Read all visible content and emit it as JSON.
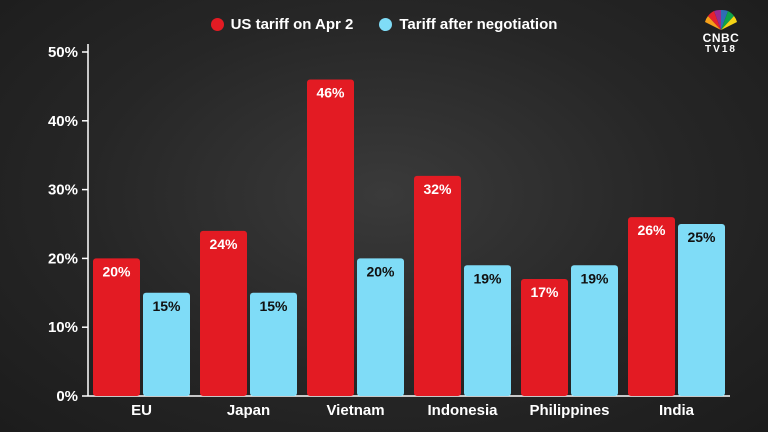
{
  "chart_data": {
    "type": "bar",
    "title": "",
    "xlabel": "",
    "ylabel": "",
    "categories": [
      "EU",
      "Japan",
      "Vietnam",
      "Indonesia",
      "Philippines",
      "India"
    ],
    "series": [
      {
        "name": "US tariff on Apr 2",
        "values": [
          20,
          24,
          46,
          32,
          17,
          26
        ],
        "color": "#e31b23"
      },
      {
        "name": "Tariff after negotiation",
        "values": [
          15,
          15,
          20,
          19,
          19,
          25
        ],
        "color": "#7fdcf7"
      }
    ],
    "ylim": [
      0,
      50
    ],
    "yticks": [
      0,
      10,
      20,
      30,
      40,
      50
    ],
    "ytick_labels": [
      "0%",
      "10%",
      "20%",
      "30%",
      "40%",
      "50%"
    ],
    "data_labels": [
      [
        "20%",
        "24%",
        "46%",
        "32%",
        "17%",
        "26%"
      ],
      [
        "15%",
        "15%",
        "20%",
        "19%",
        "19%",
        "25%"
      ]
    ],
    "legend_position": "top-center",
    "grid": false
  },
  "legend": {
    "items": [
      {
        "label": "US tariff on Apr 2",
        "color": "#e31b23"
      },
      {
        "label": "Tariff after negotiation",
        "color": "#7fdcf7"
      }
    ]
  },
  "logo": {
    "line1": "CNBC",
    "line2": "TV18"
  },
  "colors": {
    "axis": "#ffffff",
    "text": "#ffffff",
    "label_on_light": "#111111"
  }
}
